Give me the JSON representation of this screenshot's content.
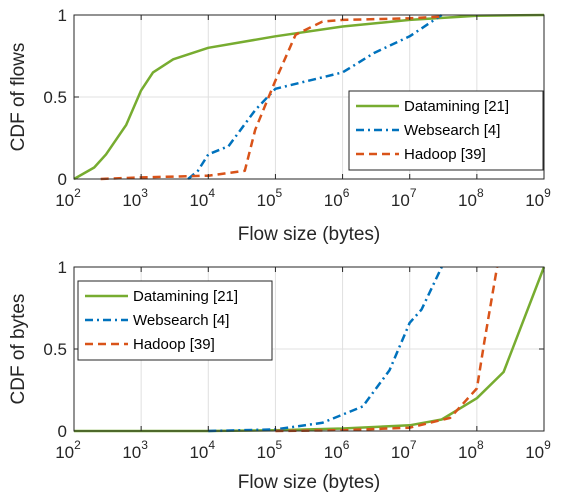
{
  "chart_data": [
    {
      "type": "line",
      "xscale": "log",
      "xlim": [
        100,
        1000000000
      ],
      "ylim": [
        0,
        1
      ],
      "xlabel": "Flow size (bytes)",
      "ylabel": "CDF of flows",
      "grid": true,
      "legend_position": "bottom-right",
      "xticks": [
        {
          "base": "10",
          "exp": "2"
        },
        {
          "base": "10",
          "exp": "3"
        },
        {
          "base": "10",
          "exp": "4"
        },
        {
          "base": "10",
          "exp": "5"
        },
        {
          "base": "10",
          "exp": "6"
        },
        {
          "base": "10",
          "exp": "7"
        },
        {
          "base": "10",
          "exp": "8"
        },
        {
          "base": "10",
          "exp": "9"
        }
      ],
      "yticks": [
        "0",
        "0.5",
        "1"
      ],
      "series": [
        {
          "name": "Datamining [21]",
          "color": "#77AC30",
          "style": "solid",
          "points": [
            [
              100,
              0.0
            ],
            [
              200,
              0.07
            ],
            [
              300,
              0.15
            ],
            [
              600,
              0.33
            ],
            [
              1000,
              0.54
            ],
            [
              1500,
              0.65
            ],
            [
              3000,
              0.73
            ],
            [
              10000,
              0.8
            ],
            [
              100000,
              0.87
            ],
            [
              1000000,
              0.93
            ],
            [
              10000000,
              0.97
            ],
            [
              100000000,
              0.995
            ],
            [
              1000000000,
              1.0
            ]
          ]
        },
        {
          "name": "Websearch [4]",
          "color": "#0072BD",
          "style": "dashdot",
          "points": [
            [
              5000,
              0.0
            ],
            [
              7000,
              0.05
            ],
            [
              10000,
              0.15
            ],
            [
              20000,
              0.2
            ],
            [
              50000,
              0.42
            ],
            [
              100000,
              0.55
            ],
            [
              1000000,
              0.65
            ],
            [
              3000000,
              0.77
            ],
            [
              10000000,
              0.87
            ],
            [
              30000000,
              1.0
            ]
          ]
        },
        {
          "name": "Hadoop [39]",
          "color": "#D95319",
          "style": "dashed",
          "points": [
            [
              250,
              0.0
            ],
            [
              1000,
              0.01
            ],
            [
              10000,
              0.02
            ],
            [
              35000,
              0.05
            ],
            [
              50000,
              0.3
            ],
            [
              100000,
              0.6
            ],
            [
              200000,
              0.88
            ],
            [
              500000,
              0.96
            ],
            [
              1000000,
              0.97
            ],
            [
              10000000,
              0.98
            ],
            [
              30000000,
              0.99
            ]
          ]
        }
      ]
    },
    {
      "type": "line",
      "xscale": "log",
      "xlim": [
        100,
        1000000000
      ],
      "ylim": [
        0,
        1
      ],
      "xlabel": "Flow size (bytes)",
      "ylabel": "CDF of bytes",
      "grid": true,
      "legend_position": "top-left",
      "xticks": [
        {
          "base": "10",
          "exp": "2"
        },
        {
          "base": "10",
          "exp": "3"
        },
        {
          "base": "10",
          "exp": "4"
        },
        {
          "base": "10",
          "exp": "5"
        },
        {
          "base": "10",
          "exp": "6"
        },
        {
          "base": "10",
          "exp": "7"
        },
        {
          "base": "10",
          "exp": "8"
        },
        {
          "base": "10",
          "exp": "9"
        }
      ],
      "yticks": [
        "0",
        "0.5",
        "1"
      ],
      "series": [
        {
          "name": "Datamining [21]",
          "color": "#77AC30",
          "style": "solid",
          "points": [
            [
              100,
              0.0
            ],
            [
              10000,
              0.0
            ],
            [
              100000,
              0.005
            ],
            [
              1000000,
              0.015
            ],
            [
              10000000,
              0.035
            ],
            [
              30000000,
              0.07
            ],
            [
              100000000,
              0.2
            ],
            [
              250000000,
              0.36
            ],
            [
              1000000000,
              1.0
            ]
          ]
        },
        {
          "name": "Websearch [4]",
          "color": "#0072BD",
          "style": "dashdot",
          "points": [
            [
              10000,
              0.0
            ],
            [
              100000,
              0.01
            ],
            [
              500000,
              0.05
            ],
            [
              2000000,
              0.15
            ],
            [
              5000000,
              0.37
            ],
            [
              10000000,
              0.66
            ],
            [
              15000000,
              0.74
            ],
            [
              30000000,
              1.0
            ]
          ]
        },
        {
          "name": "Hadoop [39]",
          "color": "#D95319",
          "style": "dashed",
          "points": [
            [
              100000,
              0.0
            ],
            [
              1000000,
              0.005
            ],
            [
              10000000,
              0.02
            ],
            [
              40000000,
              0.08
            ],
            [
              100000000,
              0.26
            ],
            [
              130000000,
              0.55
            ],
            [
              200000000,
              1.0
            ]
          ]
        }
      ]
    }
  ]
}
